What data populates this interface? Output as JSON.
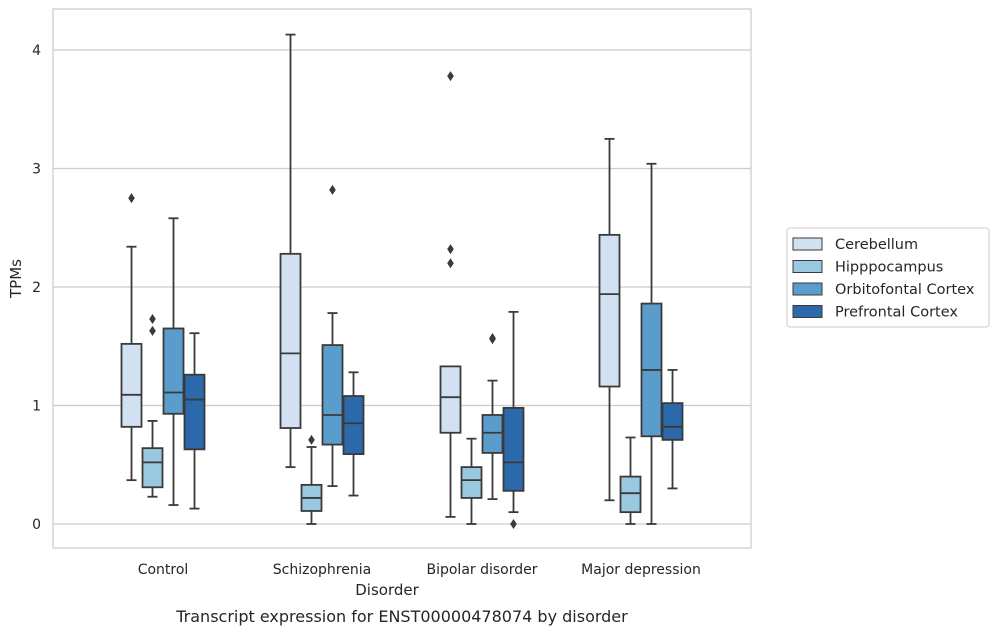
{
  "chart_data": {
    "type": "box",
    "title": "Transcript expression for ENST00000478074 by disorder",
    "xlabel": "Disorder",
    "ylabel": "TPMs",
    "ylim": [
      -0.2,
      4.35
    ],
    "yticks": [
      0,
      1,
      2,
      3,
      4
    ],
    "grid": true,
    "legend_position": "right",
    "categories": [
      "Control",
      "Schizophrenia",
      "Bipolar disorder",
      "Major depression"
    ],
    "series": [
      {
        "name": "Cerebellum",
        "color": "#d1e1f1",
        "boxes": [
          {
            "whisker_low": 0.37,
            "q1": 0.82,
            "median": 1.09,
            "q3": 1.52,
            "whisker_high": 2.34,
            "outliers": [
              2.75
            ]
          },
          {
            "whisker_low": 0.48,
            "q1": 0.81,
            "median": 1.44,
            "q3": 2.28,
            "whisker_high": 4.13,
            "outliers": []
          },
          {
            "whisker_low": 0.06,
            "q1": 0.77,
            "median": 1.07,
            "q3": 1.33,
            "whisker_high": 1.33,
            "outliers": [
              2.2,
              2.32,
              3.78
            ]
          },
          {
            "whisker_low": 0.2,
            "q1": 1.16,
            "median": 1.94,
            "q3": 2.44,
            "whisker_high": 3.25,
            "outliers": []
          }
        ]
      },
      {
        "name": "Hipppocampus",
        "color": "#9ac8e0",
        "boxes": [
          {
            "whisker_low": 0.23,
            "q1": 0.31,
            "median": 0.52,
            "q3": 0.64,
            "whisker_high": 0.87,
            "outliers": [
              1.63,
              1.73
            ]
          },
          {
            "whisker_low": 0.0,
            "q1": 0.11,
            "median": 0.22,
            "q3": 0.33,
            "whisker_high": 0.65,
            "outliers": [
              0.71
            ]
          },
          {
            "whisker_low": 0.0,
            "q1": 0.22,
            "median": 0.37,
            "q3": 0.48,
            "whisker_high": 0.72,
            "outliers": []
          },
          {
            "whisker_low": 0.0,
            "q1": 0.1,
            "median": 0.26,
            "q3": 0.4,
            "whisker_high": 0.73,
            "outliers": []
          }
        ]
      },
      {
        "name": "Orbitofontal Cortex",
        "color": "#5a9ccc",
        "boxes": [
          {
            "whisker_low": 0.16,
            "q1": 0.93,
            "median": 1.11,
            "q3": 1.65,
            "whisker_high": 2.58,
            "outliers": []
          },
          {
            "whisker_low": 0.32,
            "q1": 0.67,
            "median": 0.92,
            "q3": 1.51,
            "whisker_high": 1.78,
            "outliers": [
              2.82
            ]
          },
          {
            "whisker_low": 0.21,
            "q1": 0.6,
            "median": 0.77,
            "q3": 0.92,
            "whisker_high": 1.21,
            "outliers": [
              1.56,
              1.57
            ]
          },
          {
            "whisker_low": 0.0,
            "q1": 0.74,
            "median": 1.3,
            "q3": 1.86,
            "whisker_high": 3.04,
            "outliers": []
          }
        ]
      },
      {
        "name": "Prefrontal Cortex",
        "color": "#2c69aa",
        "boxes": [
          {
            "whisker_low": 0.13,
            "q1": 0.63,
            "median": 1.05,
            "q3": 1.26,
            "whisker_high": 1.61,
            "outliers": []
          },
          {
            "whisker_low": 0.24,
            "q1": 0.59,
            "median": 0.85,
            "q3": 1.08,
            "whisker_high": 1.28,
            "outliers": []
          },
          {
            "whisker_low": 0.1,
            "q1": 0.28,
            "median": 0.52,
            "q3": 0.98,
            "whisker_high": 1.79,
            "outliers": [
              0.0
            ]
          },
          {
            "whisker_low": 0.3,
            "q1": 0.71,
            "median": 0.82,
            "q3": 1.02,
            "whisker_high": 1.3,
            "outliers": []
          }
        ]
      }
    ]
  }
}
